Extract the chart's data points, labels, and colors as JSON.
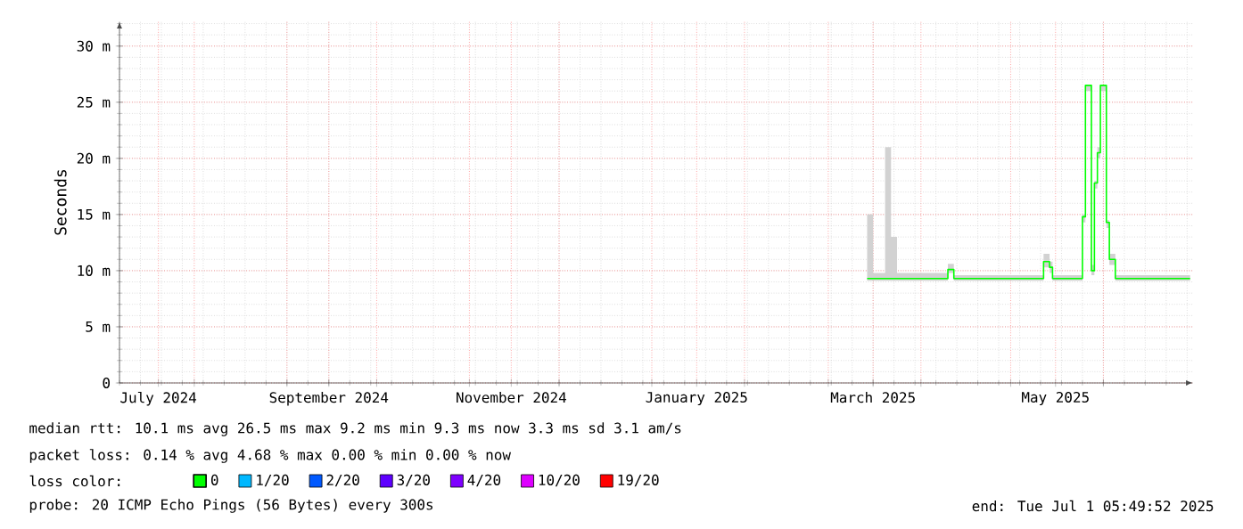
{
  "chart_data": {
    "type": "step",
    "ylabel": "Seconds",
    "xlim": [
      "2024-07-07",
      "2025-07-01"
    ],
    "xticks": [
      {
        "value": "2024-07-20",
        "label": "July 2024"
      },
      {
        "value": "2024-08-01",
        "label": null
      },
      {
        "value": "2024-09-01",
        "label": null
      },
      {
        "value": "2024-09-15",
        "label": "September 2024"
      },
      {
        "value": "2024-10-01",
        "label": null
      },
      {
        "value": "2024-11-01",
        "label": null
      },
      {
        "value": "2024-11-15",
        "label": "November 2024"
      },
      {
        "value": "2024-12-01",
        "label": null
      },
      {
        "value": "2025-01-01",
        "label": null
      },
      {
        "value": "2025-01-16",
        "label": "January 2025"
      },
      {
        "value": "2025-02-01",
        "label": null
      },
      {
        "value": "2025-03-01",
        "label": null
      },
      {
        "value": "2025-03-16",
        "label": "March 2025"
      },
      {
        "value": "2025-04-01",
        "label": null
      },
      {
        "value": "2025-05-01",
        "label": null
      },
      {
        "value": "2025-05-16",
        "label": "May 2025"
      },
      {
        "value": "2025-06-01",
        "label": null
      }
    ],
    "ylim": [
      0,
      32.2
    ],
    "yticks": [
      {
        "value": 0,
        "label": "0"
      },
      {
        "value": 5,
        "label": "5 m"
      },
      {
        "value": 10,
        "label": "10 m"
      },
      {
        "value": 15,
        "label": "15 m"
      },
      {
        "value": 20,
        "label": "20 m"
      },
      {
        "value": 25,
        "label": "25 m"
      },
      {
        "value": 30,
        "label": "30 m"
      }
    ],
    "grid": true,
    "legend": "bottom",
    "legend_title": "loss color:",
    "series": [
      {
        "name": "0",
        "color": "#00ff00",
        "x": [
          "2025-03-14",
          "2025-03-16",
          "2025-03-20",
          "2025-03-22",
          "2025-03-24",
          "2025-04-10",
          "2025-04-12",
          "2025-05-12",
          "2025-05-14",
          "2025-05-15",
          "2025-05-25",
          "2025-05-26",
          "2025-05-28",
          "2025-05-29",
          "2025-05-30",
          "2025-05-31",
          "2025-06-02",
          "2025-06-03",
          "2025-06-05",
          "2025-06-30"
        ],
        "values": [
          9.3,
          9.3,
          9.3,
          9.3,
          9.3,
          10.1,
          9.3,
          10.8,
          10.3,
          9.3,
          14.8,
          26.5,
          10.0,
          17.8,
          20.5,
          26.5,
          14.3,
          11.0,
          9.3,
          9.3
        ],
        "lower": [
          9.1,
          9.1,
          9.1,
          9.1,
          9.1,
          9.8,
          9.1,
          10.3,
          9.8,
          9.1,
          14.3,
          26,
          9.6,
          17.3,
          20,
          26,
          13.8,
          10.5,
          9.1,
          9.1
        ],
        "upper": [
          15,
          9.8,
          21,
          13,
          9.8,
          10.6,
          9.6,
          11.5,
          10.8,
          9.6,
          15,
          26.5,
          10.5,
          18,
          21,
          26.5,
          14.5,
          11.5,
          9.6,
          9.6
        ]
      },
      {
        "name": "1/20",
        "color": "#00b8ff",
        "values": [
          null
        ]
      },
      {
        "name": "2/20",
        "color": "#0059ff",
        "values": [
          null
        ]
      },
      {
        "name": "3/20",
        "color": "#5e00ff",
        "values": [
          null
        ]
      },
      {
        "name": "4/20",
        "color": "#7e00ff",
        "values": [
          null
        ]
      },
      {
        "name": "10/20",
        "color": "#dd00ff",
        "values": [
          null
        ]
      },
      {
        "name": "19/20",
        "color": "#ff0000",
        "values": [
          null
        ]
      }
    ],
    "annotations": [
      "median rtt:  10.1 ms avg  26.5 ms max  9.2 ms min  9.3 ms now  3.3 ms sd  3.1   am/s",
      "packet loss: 0.14 % avg  4.68 % max  0.00 % min  0.00 % now",
      "probe:       20 ICMP Echo Pings (56 Bytes) every 300s",
      "end: Tue Jul  1 05:49:52 2025"
    ]
  }
}
